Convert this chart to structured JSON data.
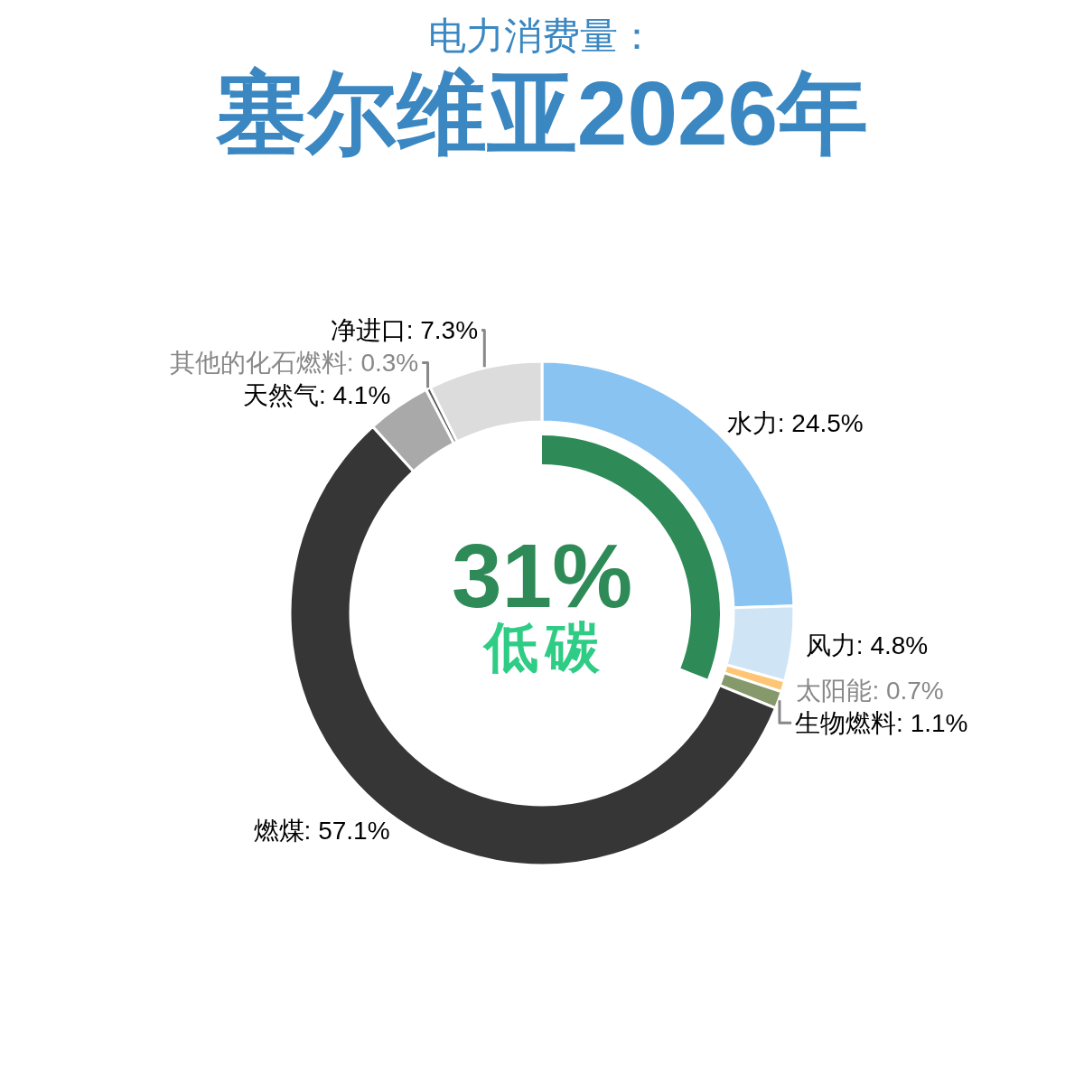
{
  "chart_data": {
    "type": "donut",
    "subtitle": "电力消费量：",
    "title": "塞尔维亚2026年",
    "categories": [
      "水力",
      "风力",
      "太阳能",
      "生物燃料",
      "燃煤",
      "天然气",
      "其他的化石燃料",
      "净进口"
    ],
    "values": [
      24.5,
      4.8,
      0.7,
      1.1,
      57.1,
      4.1,
      0.3,
      7.3
    ],
    "colors": [
      "#89c3f2",
      "#cfe5f6",
      "#fdc574",
      "#86996b",
      "#363636",
      "#a9a9a9",
      "#5a5a5a",
      "#dcdcdc"
    ],
    "value_labels": [
      "24.5%",
      "4.8%",
      "0.7%",
      "1.1%",
      "57.1%",
      "4.1%",
      "0.3%",
      "7.3%"
    ],
    "annotations": [
      "31%",
      "低碳"
    ]
  }
}
